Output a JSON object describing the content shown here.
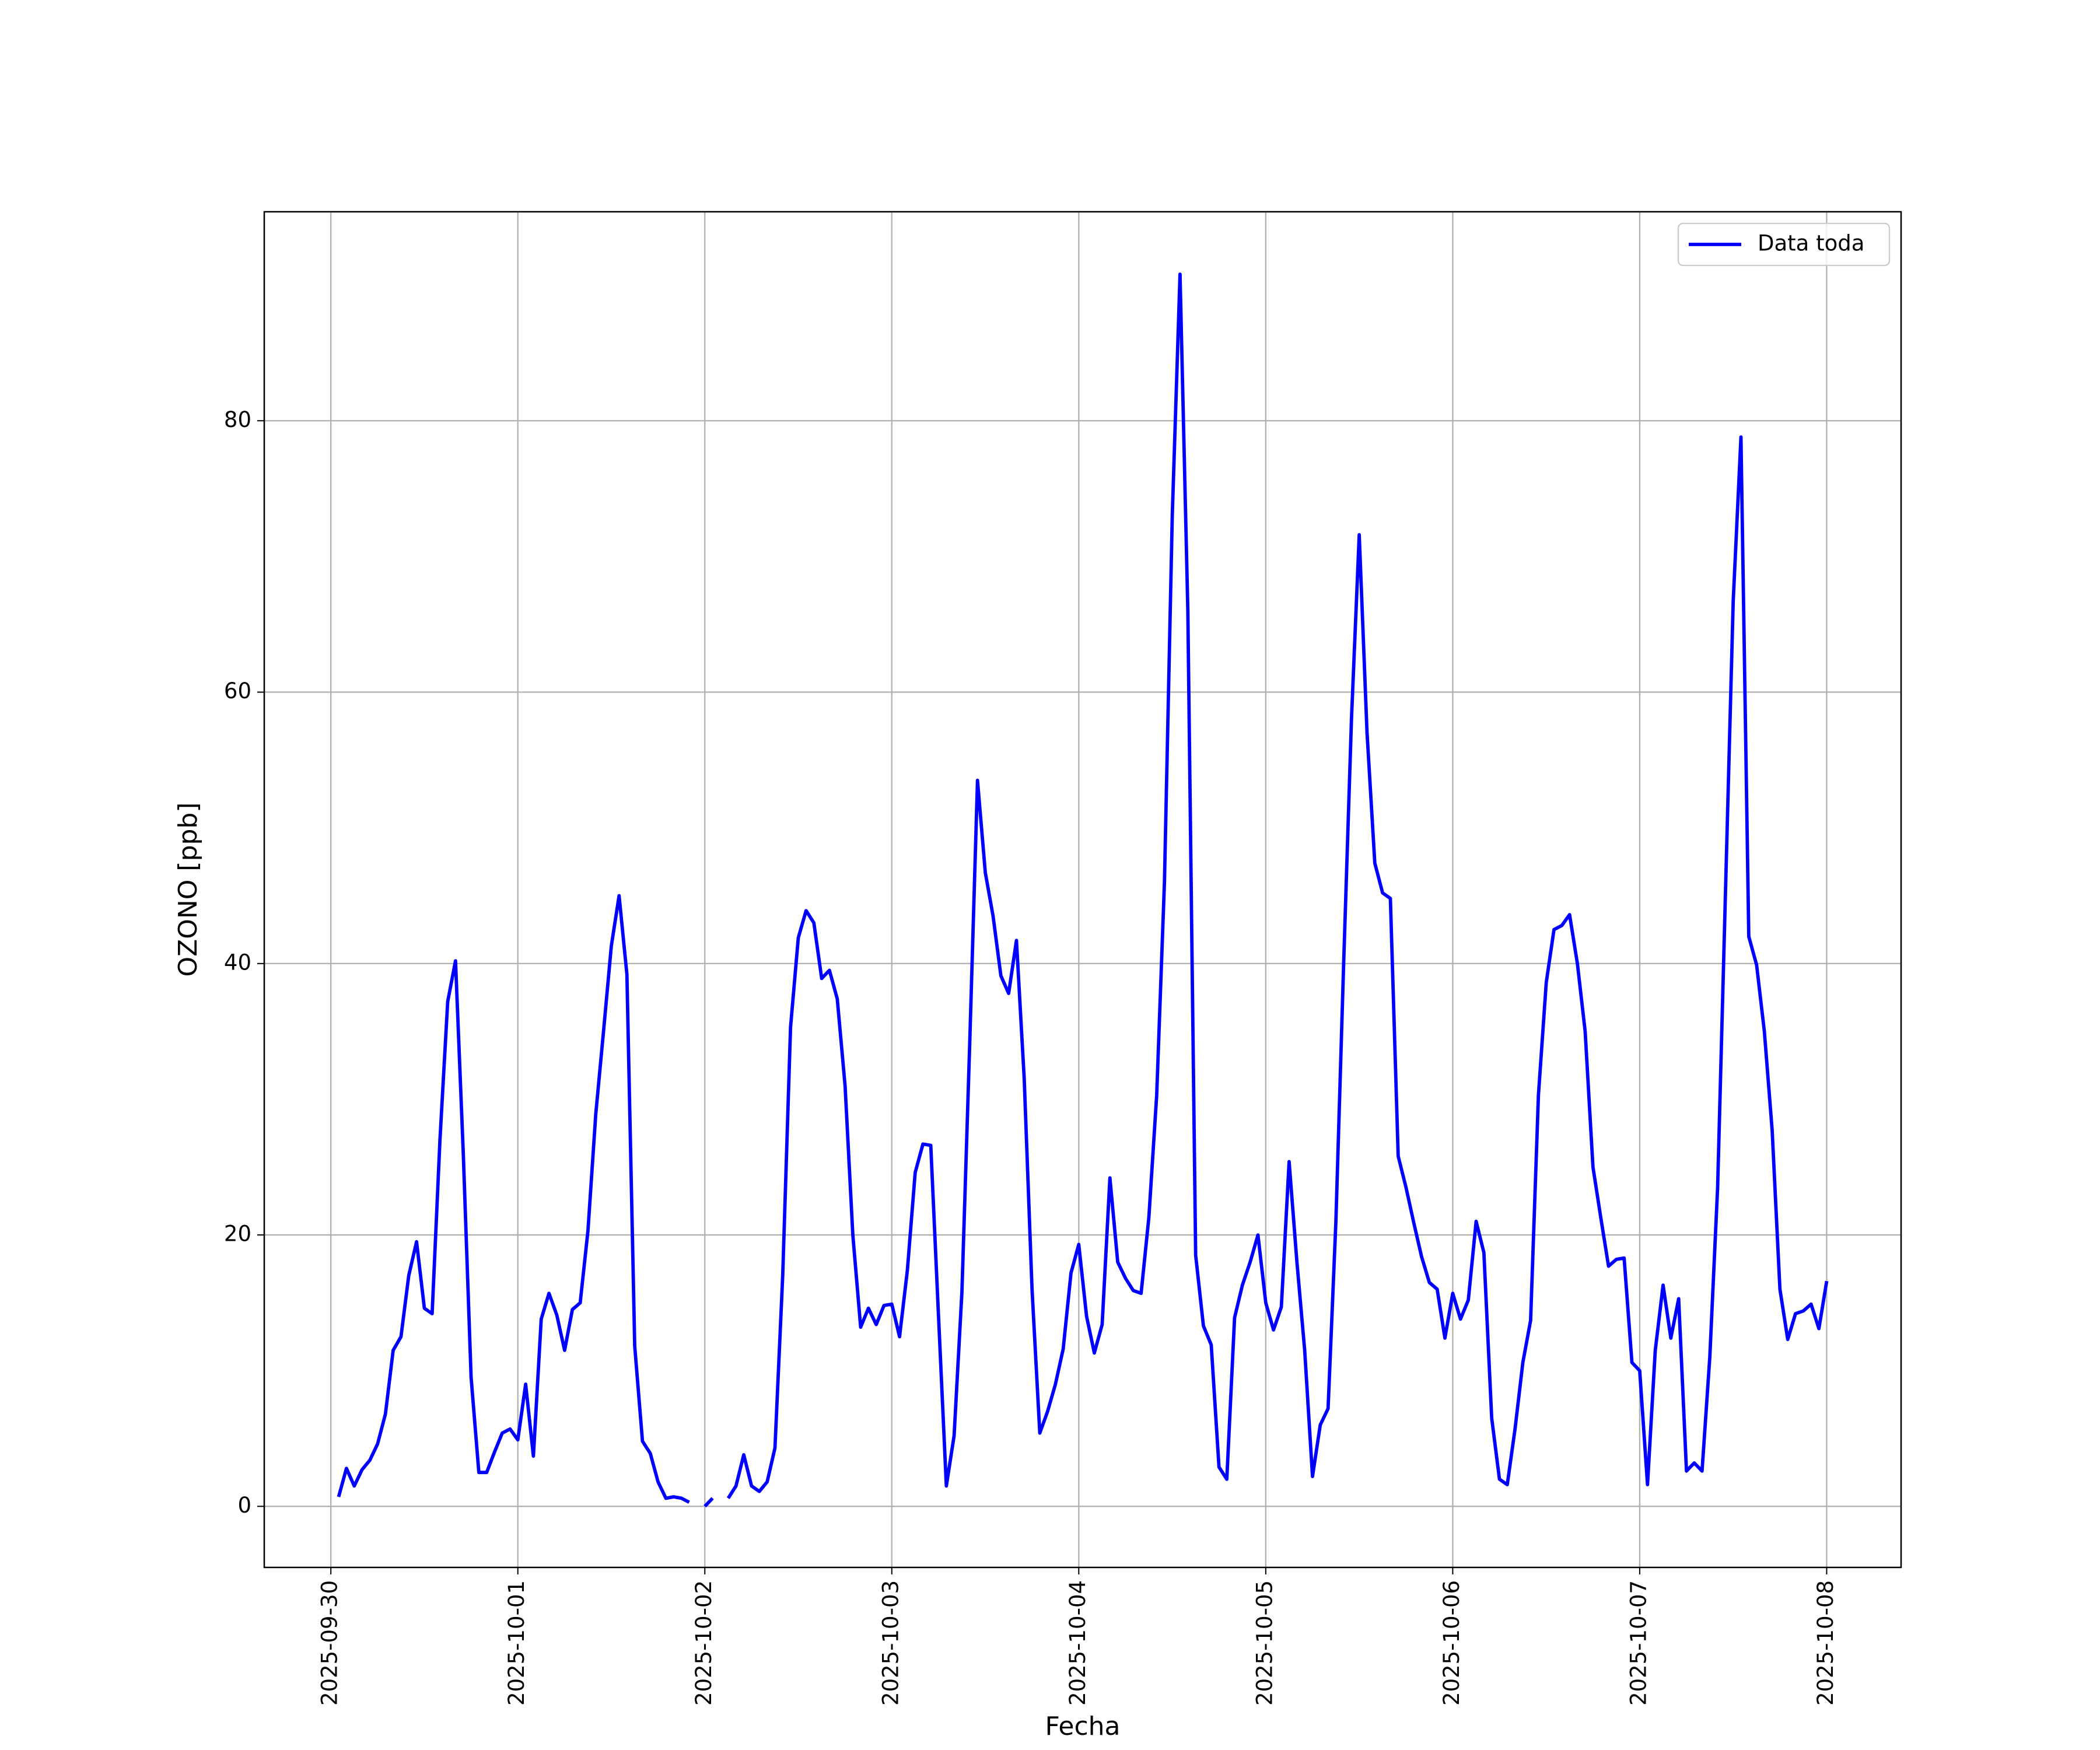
{
  "chart_data": {
    "type": "line",
    "xlabel": "Fecha",
    "ylabel": "OZONO [ppb]",
    "x": [
      "2025-09-30 01:00",
      "2025-09-30 02:00",
      "2025-09-30 03:00",
      "2025-09-30 04:00",
      "2025-09-30 05:00",
      "2025-09-30 06:00",
      "2025-09-30 07:00",
      "2025-09-30 08:00",
      "2025-09-30 09:00",
      "2025-09-30 10:00",
      "2025-09-30 11:00",
      "2025-09-30 12:00",
      "2025-09-30 13:00",
      "2025-09-30 14:00",
      "2025-09-30 15:00",
      "2025-09-30 16:00",
      "2025-09-30 17:00",
      "2025-09-30 18:00",
      "2025-09-30 19:00",
      "2025-09-30 20:00",
      "2025-09-30 21:00",
      "2025-09-30 22:00",
      "2025-09-30 23:00",
      "2025-10-01 00:00",
      "2025-10-01 01:00",
      "2025-10-01 02:00",
      "2025-10-01 03:00",
      "2025-10-01 04:00",
      "2025-10-01 05:00",
      "2025-10-01 06:00",
      "2025-10-01 07:00",
      "2025-10-01 08:00",
      "2025-10-01 09:00",
      "2025-10-01 10:00",
      "2025-10-01 11:00",
      "2025-10-01 12:00",
      "2025-10-01 13:00",
      "2025-10-01 14:00",
      "2025-10-01 15:00",
      "2025-10-01 16:00",
      "2025-10-01 17:00",
      "2025-10-01 18:00",
      "2025-10-01 19:00",
      "2025-10-01 20:00",
      "2025-10-01 21:00",
      "2025-10-01 22:00",
      "2025-10-01 23:00",
      "2025-10-02 00:00",
      "2025-10-02 01:00",
      "2025-10-02 02:00",
      "2025-10-02 03:00",
      "2025-10-02 04:00",
      "2025-10-02 05:00",
      "2025-10-02 06:00",
      "2025-10-02 07:00",
      "2025-10-02 08:00",
      "2025-10-02 09:00",
      "2025-10-02 10:00",
      "2025-10-02 11:00",
      "2025-10-02 12:00",
      "2025-10-02 13:00",
      "2025-10-02 14:00",
      "2025-10-02 15:00",
      "2025-10-02 16:00",
      "2025-10-02 17:00",
      "2025-10-02 18:00",
      "2025-10-02 19:00",
      "2025-10-02 20:00",
      "2025-10-02 21:00",
      "2025-10-02 22:00",
      "2025-10-02 23:00",
      "2025-10-03 00:00",
      "2025-10-03 01:00",
      "2025-10-03 02:00",
      "2025-10-03 03:00",
      "2025-10-03 04:00",
      "2025-10-03 05:00",
      "2025-10-03 06:00",
      "2025-10-03 07:00",
      "2025-10-03 08:00",
      "2025-10-03 09:00",
      "2025-10-03 10:00",
      "2025-10-03 11:00",
      "2025-10-03 12:00",
      "2025-10-03 13:00",
      "2025-10-03 14:00",
      "2025-10-03 15:00",
      "2025-10-03 16:00",
      "2025-10-03 17:00",
      "2025-10-03 18:00",
      "2025-10-03 19:00",
      "2025-10-03 20:00",
      "2025-10-03 21:00",
      "2025-10-03 22:00",
      "2025-10-03 23:00",
      "2025-10-04 00:00",
      "2025-10-04 01:00",
      "2025-10-04 02:00",
      "2025-10-04 03:00",
      "2025-10-04 04:00",
      "2025-10-04 05:00",
      "2025-10-04 06:00",
      "2025-10-04 07:00",
      "2025-10-04 08:00",
      "2025-10-04 09:00",
      "2025-10-04 10:00",
      "2025-10-04 11:00",
      "2025-10-04 12:00",
      "2025-10-04 13:00",
      "2025-10-04 14:00",
      "2025-10-04 15:00",
      "2025-10-04 16:00",
      "2025-10-04 17:00",
      "2025-10-04 18:00",
      "2025-10-04 19:00",
      "2025-10-04 20:00",
      "2025-10-04 21:00",
      "2025-10-04 22:00",
      "2025-10-04 23:00",
      "2025-10-05 00:00",
      "2025-10-05 01:00",
      "2025-10-05 02:00",
      "2025-10-05 03:00",
      "2025-10-05 04:00",
      "2025-10-05 05:00",
      "2025-10-05 06:00",
      "2025-10-05 07:00",
      "2025-10-05 08:00",
      "2025-10-05 09:00",
      "2025-10-05 10:00",
      "2025-10-05 11:00",
      "2025-10-05 12:00",
      "2025-10-05 13:00",
      "2025-10-05 14:00",
      "2025-10-05 15:00",
      "2025-10-05 16:00",
      "2025-10-05 17:00",
      "2025-10-05 18:00",
      "2025-10-05 19:00",
      "2025-10-05 20:00",
      "2025-10-05 21:00",
      "2025-10-05 22:00",
      "2025-10-05 23:00",
      "2025-10-06 00:00",
      "2025-10-06 01:00",
      "2025-10-06 02:00",
      "2025-10-06 03:00",
      "2025-10-06 04:00",
      "2025-10-06 05:00",
      "2025-10-06 06:00",
      "2025-10-06 07:00",
      "2025-10-06 08:00",
      "2025-10-06 09:00",
      "2025-10-06 10:00",
      "2025-10-06 11:00",
      "2025-10-06 12:00",
      "2025-10-06 13:00",
      "2025-10-06 14:00",
      "2025-10-06 15:00",
      "2025-10-06 16:00",
      "2025-10-06 17:00",
      "2025-10-06 18:00",
      "2025-10-06 19:00",
      "2025-10-06 20:00",
      "2025-10-06 21:00",
      "2025-10-06 22:00",
      "2025-10-06 23:00",
      "2025-10-07 00:00",
      "2025-10-07 01:00",
      "2025-10-07 02:00",
      "2025-10-07 03:00",
      "2025-10-07 04:00",
      "2025-10-07 05:00",
      "2025-10-07 06:00",
      "2025-10-07 07:00",
      "2025-10-07 08:00",
      "2025-10-07 09:00",
      "2025-10-07 10:00",
      "2025-10-07 11:00",
      "2025-10-07 12:00",
      "2025-10-07 13:00",
      "2025-10-07 14:00",
      "2025-10-07 15:00",
      "2025-10-07 16:00",
      "2025-10-07 17:00",
      "2025-10-07 18:00",
      "2025-10-07 19:00",
      "2025-10-07 20:00",
      "2025-10-07 21:00",
      "2025-10-07 22:00",
      "2025-10-07 23:00",
      "2025-10-08 00:00"
    ],
    "series": [
      {
        "name": "Data toda",
        "color": "#0000ff",
        "values": [
          0.7,
          2.8,
          1.5,
          2.7,
          3.4,
          4.6,
          6.8,
          11.5,
          12.5,
          17,
          19.5,
          14.6,
          14.2,
          27,
          37.2,
          40.2,
          26,
          9.5,
          2.5,
          2.5,
          4,
          5.4,
          5.7,
          4.9,
          9,
          3.7,
          13.8,
          15.7,
          14.1,
          11.5,
          14.5,
          15,
          20.3,
          28.9,
          35,
          41.3,
          45,
          39.2,
          11.8,
          4.8,
          3.9,
          1.8,
          0.6,
          0.7,
          0.6,
          0.3,
          null,
          0,
          0.6,
          null,
          0.6,
          1.5,
          3.8,
          1.5,
          1.1,
          1.8,
          4.3,
          17,
          35.3,
          41.9,
          43.9,
          43,
          38.9,
          39.5,
          37.4,
          31,
          20,
          13.2,
          14.6,
          13.4,
          14.8,
          14.9,
          12.5,
          17.4,
          24.6,
          26.7,
          26.6,
          14,
          1.5,
          5.2,
          15.8,
          34,
          53.5,
          46.7,
          43.5,
          39.1,
          37.8,
          41.7,
          31.5,
          16,
          5.4,
          7,
          9,
          11.6,
          17.2,
          19.3,
          14,
          11.3,
          13.4,
          24.2,
          18,
          16.8,
          15.9,
          15.7,
          21.3,
          30.3,
          46,
          73,
          90.8,
          66,
          18.5,
          13.3,
          11.9,
          2.9,
          2,
          13.9,
          16.3,
          18,
          20,
          15,
          13,
          14.7,
          25.4,
          18,
          11.5,
          2.2,
          6,
          7.2,
          21,
          40,
          58,
          71.6,
          57,
          47.4,
          45.2,
          44.8,
          25.8,
          23.5,
          20.9,
          18.4,
          16.5,
          16,
          12.4,
          15.7,
          13.8,
          15.2,
          21,
          18.7,
          6.5,
          2,
          1.6,
          5.7,
          10.6,
          13.7,
          30.3,
          38.6,
          42.5,
          42.8,
          43.6,
          40,
          35,
          25,
          21.3,
          17.7,
          18.2,
          18.3,
          10.6,
          10,
          1.6,
          11.5,
          16.3,
          12.4,
          15.3,
          2.6,
          3.2,
          2.6,
          11,
          23.5,
          45,
          66.7,
          78.8,
          42,
          39.9,
          35,
          27.7,
          16,
          12.3,
          14.2,
          14.4,
          14.9,
          13.1,
          16.6
        ]
      }
    ],
    "xlim": [
      "2025-09-29 15:27",
      "2025-10-08 09:33"
    ],
    "xticks": [
      "2025-09-30",
      "2025-10-01",
      "2025-10-02",
      "2025-10-03",
      "2025-10-04",
      "2025-10-05",
      "2025-10-06",
      "2025-10-07",
      "2025-10-08"
    ],
    "ylim": [
      -4.5,
      95.4
    ],
    "yticks": [
      0,
      20,
      40,
      60,
      80
    ],
    "grid": true,
    "legend": "upper right"
  }
}
